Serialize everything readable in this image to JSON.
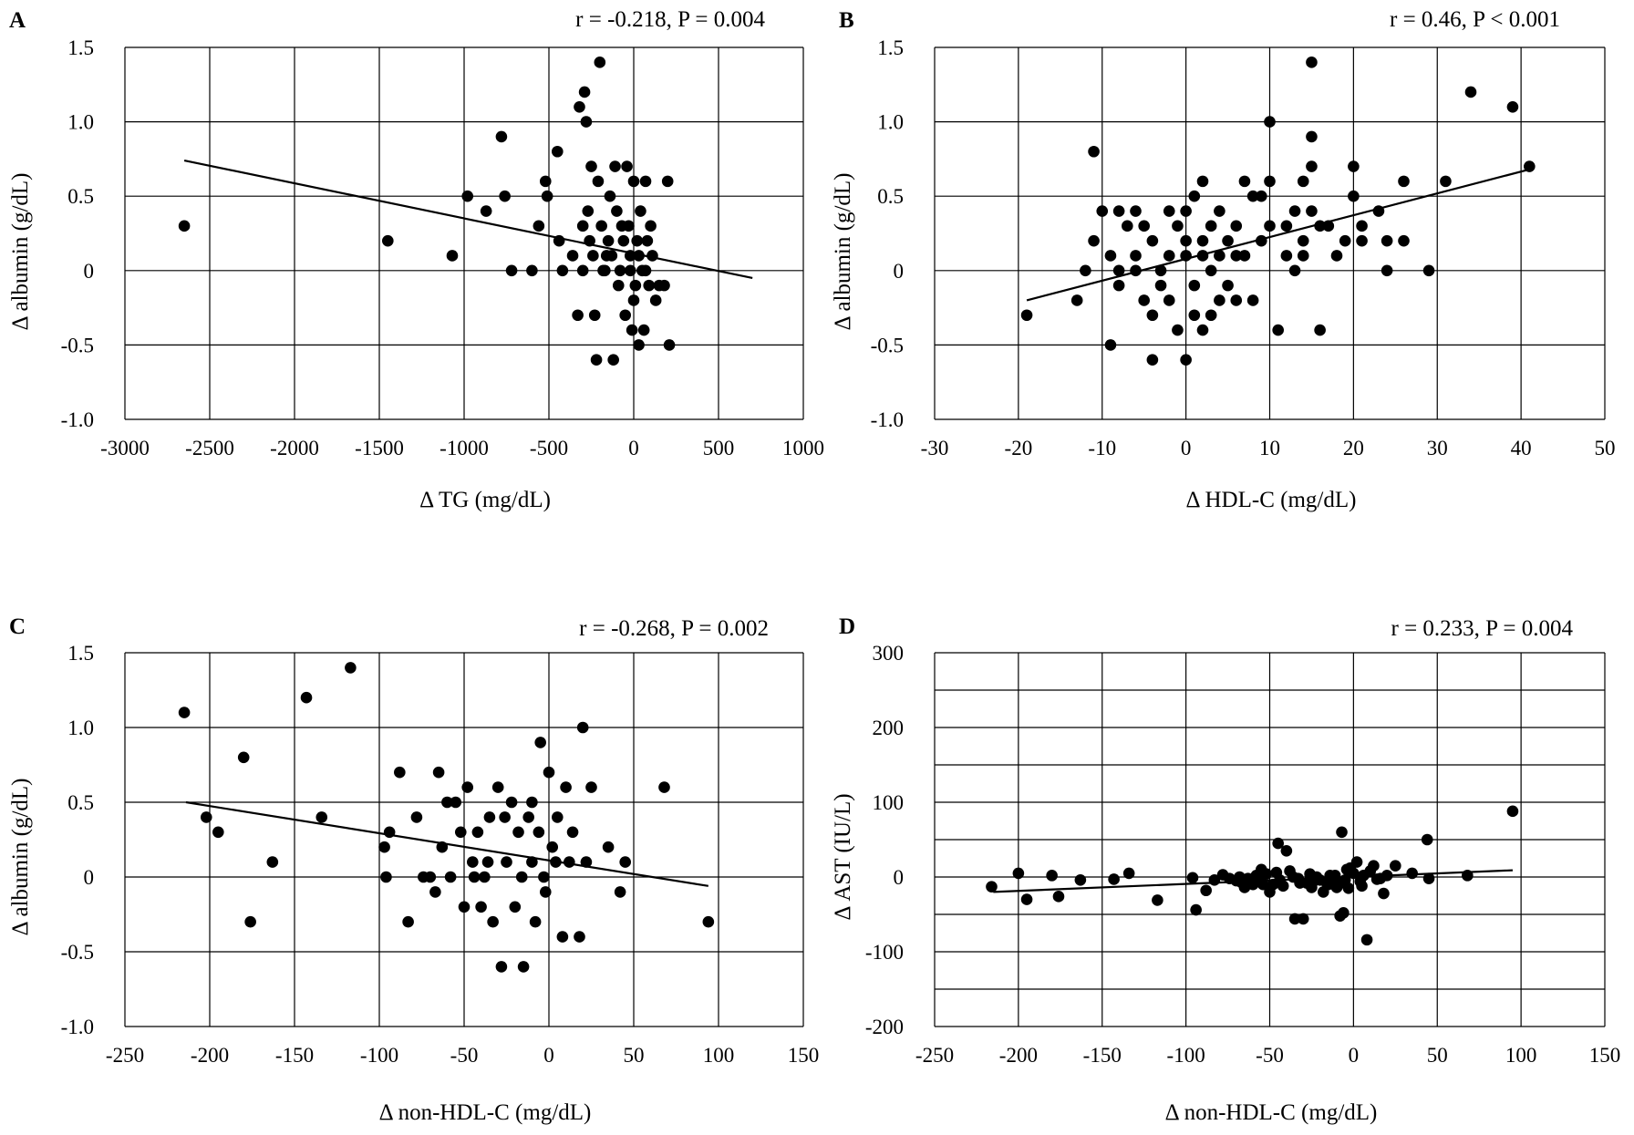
{
  "chart_data": [
    {
      "type": "scatter",
      "panel": "A",
      "annotation": "r = -0.218,  P = 0.004",
      "xlabel": "Δ TG (mg/dL)",
      "ylabel": "Δ albumin (g/dL)",
      "xlim": [
        -3000,
        1000
      ],
      "ylim": [
        -1.0,
        1.5
      ],
      "xticks": [
        -3000,
        -2500,
        -2000,
        -1500,
        -1000,
        -500,
        0,
        500,
        1000
      ],
      "yticks": [
        -1.0,
        -0.5,
        0,
        0.5,
        1.0,
        1.5
      ],
      "xtick_labels": [
        "-3000",
        "-2500",
        "-2000",
        "-1500",
        "-1000",
        "-500",
        "0",
        "500",
        "1000"
      ],
      "ytick_labels": [
        "-1.0",
        "-0.5",
        "0",
        "0.5",
        "1.0",
        "1.5"
      ],
      "grid": true,
      "trendline": [
        [
          -2650,
          0.74
        ],
        [
          700,
          -0.05
        ]
      ],
      "points": [
        [
          -2650,
          0.3
        ],
        [
          -1450,
          0.2
        ],
        [
          -1070,
          0.1
        ],
        [
          -980,
          0.5
        ],
        [
          -870,
          0.4
        ],
        [
          -780,
          0.9
        ],
        [
          -760,
          0.5
        ],
        [
          -720,
          0
        ],
        [
          -600,
          0
        ],
        [
          -560,
          0.3
        ],
        [
          -520,
          0.6
        ],
        [
          -510,
          0.5
        ],
        [
          -450,
          0.8
        ],
        [
          -440,
          0.2
        ],
        [
          -420,
          0
        ],
        [
          -360,
          0.1
        ],
        [
          -330,
          -0.3
        ],
        [
          -320,
          1.1
        ],
        [
          -290,
          1.2
        ],
        [
          -280,
          1.0
        ],
        [
          -270,
          0.4
        ],
        [
          -250,
          0.7
        ],
        [
          -230,
          -0.3
        ],
        [
          -220,
          -0.6
        ],
        [
          -210,
          0.6
        ],
        [
          -200,
          1.4
        ],
        [
          -190,
          0.3
        ],
        [
          -170,
          0
        ],
        [
          -160,
          0.1
        ],
        [
          -140,
          0.5
        ],
        [
          -120,
          -0.6
        ],
        [
          -110,
          0.7
        ],
        [
          -100,
          0.4
        ],
        [
          -90,
          -0.1
        ],
        [
          -80,
          0
        ],
        [
          -60,
          0.2
        ],
        [
          -50,
          -0.3
        ],
        [
          -40,
          0.7
        ],
        [
          -30,
          0.3
        ],
        [
          -20,
          0.1
        ],
        [
          -10,
          -0.4
        ],
        [
          0,
          0.6
        ],
        [
          10,
          -0.1
        ],
        [
          20,
          0.2
        ],
        [
          30,
          -0.5
        ],
        [
          40,
          0.4
        ],
        [
          50,
          0
        ],
        [
          60,
          -0.4
        ],
        [
          70,
          0.6
        ],
        [
          80,
          0.2
        ],
        [
          90,
          -0.1
        ],
        [
          100,
          0.3
        ],
        [
          110,
          0.1
        ],
        [
          130,
          -0.2
        ],
        [
          150,
          -0.1
        ],
        [
          180,
          -0.1
        ],
        [
          200,
          0.6
        ],
        [
          210,
          -0.5
        ],
        [
          -300,
          0.3
        ],
        [
          -300,
          0
        ],
        [
          -260,
          0.2
        ],
        [
          -240,
          0.1
        ],
        [
          -180,
          0
        ],
        [
          -150,
          0.2
        ],
        [
          -130,
          0.1
        ],
        [
          -70,
          0.3
        ],
        [
          -20,
          0
        ],
        [
          0,
          -0.2
        ],
        [
          30,
          0.1
        ],
        [
          70,
          0
        ]
      ]
    },
    {
      "type": "scatter",
      "panel": "B",
      "annotation": "r = 0.46,  P < 0.001",
      "xlabel": "Δ HDL-C (mg/dL)",
      "ylabel": "Δ albumin (g/dL)",
      "xlim": [
        -30,
        50
      ],
      "ylim": [
        -1.0,
        1.5
      ],
      "xticks": [
        -30,
        -20,
        -10,
        0,
        10,
        20,
        30,
        40,
        50
      ],
      "yticks": [
        -1.0,
        -0.5,
        0,
        0.5,
        1.0,
        1.5
      ],
      "xtick_labels": [
        "-30",
        "-20",
        "-10",
        "0",
        "10",
        "20",
        "30",
        "40",
        "50"
      ],
      "ytick_labels": [
        "-1.0",
        "-0.5",
        "0",
        "0.5",
        "1.0",
        "1.5"
      ],
      "grid": true,
      "trendline": [
        [
          -19,
          -0.2
        ],
        [
          41,
          0.68
        ]
      ],
      "points": [
        [
          -19,
          -0.3
        ],
        [
          -13,
          -0.2
        ],
        [
          -12,
          0
        ],
        [
          -11,
          0.8
        ],
        [
          -11,
          0.2
        ],
        [
          -10,
          0.4
        ],
        [
          -9,
          -0.5
        ],
        [
          -9,
          0.1
        ],
        [
          -8,
          0.4
        ],
        [
          -8,
          0
        ],
        [
          -8,
          -0.1
        ],
        [
          -7,
          0.3
        ],
        [
          -6,
          0.4
        ],
        [
          -6,
          0.1
        ],
        [
          -5,
          -0.2
        ],
        [
          -5,
          0.3
        ],
        [
          -4,
          0.2
        ],
        [
          -4,
          -0.3
        ],
        [
          -4,
          -0.6
        ],
        [
          -3,
          0
        ],
        [
          -3,
          -0.1
        ],
        [
          -2,
          0.4
        ],
        [
          -2,
          0.1
        ],
        [
          -1,
          0.3
        ],
        [
          -1,
          -0.4
        ],
        [
          0,
          0.2
        ],
        [
          0,
          -0.6
        ],
        [
          0,
          0.1
        ],
        [
          0,
          0.4
        ],
        [
          1,
          -0.1
        ],
        [
          1,
          0.5
        ],
        [
          1,
          -0.3
        ],
        [
          2,
          0.6
        ],
        [
          2,
          0.2
        ],
        [
          2,
          -0.4
        ],
        [
          3,
          0
        ],
        [
          3,
          0.3
        ],
        [
          3,
          -0.3
        ],
        [
          4,
          0.1
        ],
        [
          4,
          0.4
        ],
        [
          5,
          -0.1
        ],
        [
          5,
          0.2
        ],
        [
          6,
          0.3
        ],
        [
          6,
          -0.2
        ],
        [
          7,
          0.6
        ],
        [
          7,
          0.1
        ],
        [
          8,
          0.5
        ],
        [
          8,
          -0.2
        ],
        [
          9,
          0.5
        ],
        [
          9,
          0.2
        ],
        [
          10,
          1.0
        ],
        [
          10,
          0.6
        ],
        [
          10,
          0.3
        ],
        [
          11,
          -0.4
        ],
        [
          12,
          0.1
        ],
        [
          13,
          0.4
        ],
        [
          13,
          0
        ],
        [
          14,
          0.6
        ],
        [
          14,
          0.1
        ],
        [
          15,
          1.4
        ],
        [
          15,
          0.9
        ],
        [
          15,
          0.7
        ],
        [
          15,
          0.4
        ],
        [
          16,
          0.3
        ],
        [
          16,
          -0.4
        ],
        [
          18,
          0.1
        ],
        [
          19,
          0.2
        ],
        [
          20,
          0.7
        ],
        [
          20,
          0.5
        ],
        [
          21,
          0.2
        ],
        [
          21,
          0.3
        ],
        [
          23,
          0.4
        ],
        [
          24,
          0.2
        ],
        [
          24,
          0
        ],
        [
          26,
          0.6
        ],
        [
          26,
          0.2
        ],
        [
          29,
          0
        ],
        [
          31,
          0.6
        ],
        [
          34,
          1.2
        ],
        [
          39,
          1.1
        ],
        [
          41,
          0.7
        ],
        [
          -6,
          0
        ],
        [
          -2,
          -0.2
        ],
        [
          2,
          0.1
        ],
        [
          4,
          -0.2
        ],
        [
          6,
          0.1
        ],
        [
          12,
          0.3
        ],
        [
          14,
          0.2
        ],
        [
          17,
          0.3
        ]
      ]
    },
    {
      "type": "scatter",
      "panel": "C",
      "annotation": "r = -0.268,  P = 0.002",
      "xlabel": "Δ non-HDL-C (mg/dL)",
      "ylabel": "Δ albumin (g/dL)",
      "xlim": [
        -250,
        150
      ],
      "ylim": [
        -1.0,
        1.5
      ],
      "xticks": [
        -250,
        -200,
        -150,
        -100,
        -50,
        0,
        50,
        100,
        150
      ],
      "yticks": [
        -1.0,
        -0.5,
        0,
        0.5,
        1.0,
        1.5
      ],
      "xtick_labels": [
        "-250",
        "-200",
        "-150",
        "-100",
        "-50",
        "0",
        "50",
        "100",
        "150"
      ],
      "ytick_labels": [
        "-1.0",
        "-0.5",
        "0",
        "0.5",
        "1.0",
        "1.5"
      ],
      "grid": true,
      "trendline": [
        [
          -214,
          0.5
        ],
        [
          94,
          -0.06
        ]
      ],
      "points": [
        [
          -215,
          1.1
        ],
        [
          -202,
          0.4
        ],
        [
          -195,
          0.3
        ],
        [
          -180,
          0.8
        ],
        [
          -176,
          -0.3
        ],
        [
          -163,
          0.1
        ],
        [
          -143,
          1.2
        ],
        [
          -134,
          0.4
        ],
        [
          -117,
          1.4
        ],
        [
          -97,
          0.2
        ],
        [
          -96,
          0
        ],
        [
          -94,
          0.3
        ],
        [
          -88,
          0.7
        ],
        [
          -83,
          -0.3
        ],
        [
          -78,
          0.4
        ],
        [
          -74,
          0
        ],
        [
          -70,
          0
        ],
        [
          -67,
          -0.1
        ],
        [
          -65,
          0.7
        ],
        [
          -63,
          0.2
        ],
        [
          -60,
          0.5
        ],
        [
          -58,
          0
        ],
        [
          -55,
          0.5
        ],
        [
          -52,
          0.3
        ],
        [
          -50,
          -0.2
        ],
        [
          -48,
          0.6
        ],
        [
          -45,
          0.1
        ],
        [
          -42,
          0.3
        ],
        [
          -40,
          -0.2
        ],
        [
          -38,
          0
        ],
        [
          -35,
          0.4
        ],
        [
          -33,
          -0.3
        ],
        [
          -30,
          0.6
        ],
        [
          -28,
          -0.6
        ],
        [
          -25,
          0.1
        ],
        [
          -22,
          0.5
        ],
        [
          -20,
          -0.2
        ],
        [
          -18,
          0.3
        ],
        [
          -15,
          -0.6
        ],
        [
          -12,
          0.4
        ],
        [
          -10,
          0.1
        ],
        [
          -8,
          -0.3
        ],
        [
          -5,
          0.9
        ],
        [
          -3,
          0
        ],
        [
          0,
          0.7
        ],
        [
          2,
          0.2
        ],
        [
          5,
          0.4
        ],
        [
          8,
          -0.4
        ],
        [
          10,
          0.6
        ],
        [
          14,
          0.3
        ],
        [
          18,
          -0.4
        ],
        [
          20,
          1.0
        ],
        [
          22,
          0.1
        ],
        [
          25,
          0.6
        ],
        [
          35,
          0.2
        ],
        [
          42,
          -0.1
        ],
        [
          45,
          0.1
        ],
        [
          68,
          0.6
        ],
        [
          94,
          -0.3
        ],
        [
          -26,
          0.4
        ],
        [
          -16,
          0
        ],
        [
          -6,
          0.3
        ],
        [
          -2,
          -0.1
        ],
        [
          4,
          0.1
        ],
        [
          12,
          0.1
        ],
        [
          -36,
          0.1
        ],
        [
          -44,
          0
        ],
        [
          -10,
          0.5
        ]
      ]
    },
    {
      "type": "scatter",
      "panel": "D",
      "annotation": "r = 0.233,  P = 0.004",
      "xlabel": "Δ non-HDL-C (mg/dL)",
      "ylabel": "Δ AST (IU/L)",
      "xlim": [
        -250,
        150
      ],
      "ylim": [
        -200,
        300
      ],
      "xticks": [
        -250,
        -200,
        -150,
        -100,
        -50,
        0,
        50,
        100,
        150
      ],
      "yticks": [
        -200,
        -150,
        -100,
        -50,
        0,
        50,
        100,
        150,
        200,
        250,
        300
      ],
      "ytick_labeled": [
        -200,
        -100,
        0,
        100,
        200,
        300
      ],
      "xtick_labels": [
        "-250",
        "-200",
        "-150",
        "-100",
        "-50",
        "0",
        "50",
        "100",
        "150"
      ],
      "ytick_labels": [
        "-200",
        "-100",
        "0",
        "100",
        "200",
        "300"
      ],
      "grid": true,
      "trendline": [
        [
          -215,
          -20
        ],
        [
          95,
          9
        ]
      ],
      "points": [
        [
          -216,
          -13
        ],
        [
          -200,
          5
        ],
        [
          -195,
          -30
        ],
        [
          -180,
          2
        ],
        [
          -176,
          -26
        ],
        [
          -163,
          -4
        ],
        [
          -143,
          -3
        ],
        [
          -134,
          5
        ],
        [
          -117,
          -31
        ],
        [
          -96,
          -1
        ],
        [
          -94,
          -44
        ],
        [
          -88,
          -18
        ],
        [
          -83,
          -4
        ],
        [
          -78,
          3
        ],
        [
          -74,
          -2
        ],
        [
          -70,
          -5
        ],
        [
          -67,
          -7
        ],
        [
          -65,
          -14
        ],
        [
          -63,
          -2
        ],
        [
          -60,
          -10
        ],
        [
          -58,
          2
        ],
        [
          -55,
          10
        ],
        [
          -52,
          4
        ],
        [
          -50,
          -20
        ],
        [
          -48,
          -10
        ],
        [
          -45,
          45
        ],
        [
          -42,
          -12
        ],
        [
          -40,
          35
        ],
        [
          -38,
          8
        ],
        [
          -35,
          -56
        ],
        [
          -33,
          -2
        ],
        [
          -30,
          -56
        ],
        [
          -28,
          -8
        ],
        [
          -25,
          -14
        ],
        [
          -22,
          0
        ],
        [
          -20,
          -4
        ],
        [
          -18,
          -20
        ],
        [
          -15,
          -10
        ],
        [
          -12,
          -3
        ],
        [
          -10,
          -14
        ],
        [
          -8,
          -52
        ],
        [
          -7,
          60
        ],
        [
          -6,
          -48
        ],
        [
          -5,
          -4
        ],
        [
          -3,
          -15
        ],
        [
          0,
          5
        ],
        [
          2,
          20
        ],
        [
          5,
          -12
        ],
        [
          8,
          -84
        ],
        [
          10,
          8
        ],
        [
          14,
          -3
        ],
        [
          18,
          -22
        ],
        [
          20,
          2
        ],
        [
          25,
          15
        ],
        [
          35,
          5
        ],
        [
          44,
          50
        ],
        [
          45,
          -2
        ],
        [
          68,
          2
        ],
        [
          95,
          88
        ],
        [
          -4,
          10
        ],
        [
          -14,
          2
        ],
        [
          -24,
          -6
        ],
        [
          -32,
          -8
        ],
        [
          -44,
          -4
        ],
        [
          -54,
          -10
        ],
        [
          12,
          15
        ],
        [
          4,
          -6
        ],
        [
          16,
          -2
        ],
        [
          -2,
          12
        ],
        [
          6,
          2
        ],
        [
          -16,
          -8
        ],
        [
          -26,
          4
        ],
        [
          -36,
          0
        ],
        [
          -46,
          6
        ],
        [
          -56,
          -2
        ],
        [
          -68,
          0
        ],
        [
          -9,
          -10
        ],
        [
          -11,
          2
        ]
      ]
    }
  ]
}
